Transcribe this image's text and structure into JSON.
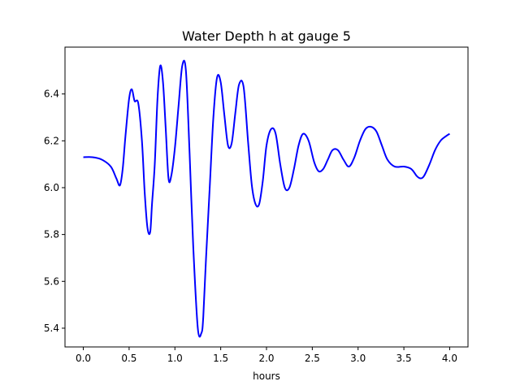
{
  "chart_data": {
    "type": "line",
    "title": "Water Depth h at gauge 5",
    "xlabel": "hours",
    "ylabel": "",
    "xlim": [
      -0.2,
      4.2
    ],
    "ylim": [
      5.32,
      6.6
    ],
    "x_ticks": [
      0.0,
      0.5,
      1.0,
      1.5,
      2.0,
      2.5,
      3.0,
      3.5,
      4.0
    ],
    "x_tick_labels": [
      "0.0",
      "0.5",
      "1.0",
      "1.5",
      "2.0",
      "2.5",
      "3.0",
      "3.5",
      "4.0"
    ],
    "y_ticks": [
      5.4,
      5.6,
      5.8,
      6.0,
      6.2,
      6.4
    ],
    "y_tick_labels": [
      "5.4",
      "5.6",
      "5.8",
      "6.0",
      "6.2",
      "6.4"
    ],
    "grid": false,
    "series": [
      {
        "color": "#0000ff",
        "x": [
          0.0,
          0.1,
          0.2,
          0.3,
          0.36,
          0.4,
          0.43,
          0.46,
          0.5,
          0.53,
          0.56,
          0.6,
          0.64,
          0.67,
          0.7,
          0.73,
          0.75,
          0.78,
          0.81,
          0.84,
          0.87,
          0.9,
          0.93,
          0.96,
          1.0,
          1.04,
          1.08,
          1.12,
          1.16,
          1.2,
          1.25,
          1.29,
          1.31,
          1.34,
          1.38,
          1.42,
          1.46,
          1.5,
          1.54,
          1.58,
          1.62,
          1.66,
          1.7,
          1.75,
          1.8,
          1.84,
          1.88,
          1.92,
          1.96,
          2.0,
          2.05,
          2.1,
          2.15,
          2.2,
          2.25,
          2.3,
          2.35,
          2.4,
          2.46,
          2.52,
          2.57,
          2.62,
          2.67,
          2.72,
          2.78,
          2.84,
          2.9,
          2.96,
          3.02,
          3.08,
          3.14,
          3.2,
          3.26,
          3.32,
          3.4,
          3.5,
          3.58,
          3.64,
          3.68,
          3.72,
          3.78,
          3.84,
          3.9,
          3.96,
          4.0
        ],
        "y": [
          6.13,
          6.13,
          6.12,
          6.09,
          6.04,
          6.01,
          6.08,
          6.22,
          6.38,
          6.42,
          6.37,
          6.36,
          6.2,
          5.98,
          5.83,
          5.81,
          5.93,
          6.1,
          6.38,
          6.52,
          6.45,
          6.25,
          6.04,
          6.05,
          6.17,
          6.35,
          6.52,
          6.5,
          6.15,
          5.75,
          5.4,
          5.38,
          5.45,
          5.7,
          6.0,
          6.3,
          6.47,
          6.45,
          6.31,
          6.18,
          6.19,
          6.32,
          6.44,
          6.43,
          6.19,
          6.01,
          5.93,
          5.93,
          6.03,
          6.18,
          6.25,
          6.23,
          6.1,
          6.0,
          6.0,
          6.08,
          6.18,
          6.23,
          6.2,
          6.11,
          6.07,
          6.08,
          6.12,
          6.16,
          6.16,
          6.12,
          6.09,
          6.13,
          6.2,
          6.25,
          6.26,
          6.24,
          6.18,
          6.12,
          6.09,
          6.09,
          6.08,
          6.05,
          6.04,
          6.05,
          6.1,
          6.16,
          6.2,
          6.22,
          6.23
        ]
      }
    ]
  }
}
